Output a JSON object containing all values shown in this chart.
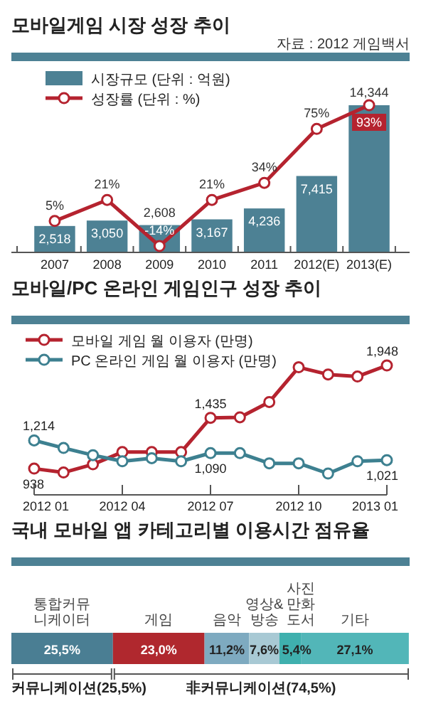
{
  "chart_data": [
    {
      "type": "bar",
      "title": "모바일게임 시장 성장 추이",
      "subtitle": "자료 : 2012 게임백서",
      "categories": [
        "2007",
        "2008",
        "2009",
        "2010",
        "2011",
        "2012(E)",
        "2013(E)"
      ],
      "legend": "top left",
      "marker": "circle",
      "tick_labels": "x",
      "series": [
        {
          "name": "시장규모 (단위 : 억원)",
          "color": "#4d8194",
          "values": [
            2518,
            3050,
            2608,
            3167,
            4236,
            7415,
            14344
          ],
          "value_labels": [
            "2,518",
            "3,050",
            "2,608",
            "3,167",
            "4,236",
            "7,415",
            "14,344"
          ]
        },
        {
          "name": "성장률 (단위 : %)",
          "type": "line",
          "axis": "y2",
          "color": "#b5232f",
          "values": [
            5,
            21,
            -14,
            21,
            34,
            75,
            93
          ],
          "value_labels": [
            "5%",
            "21%",
            "-14%",
            "21%",
            "34%",
            "75%",
            "93%"
          ]
        }
      ]
    },
    {
      "type": "line",
      "title": "모바일/PC 온라인 게임인구 성장 추이",
      "categories": [
        "2012 01",
        null,
        null,
        "2012 04",
        null,
        null,
        "2012 07",
        null,
        null,
        "2012 10",
        null,
        null,
        "2013 01"
      ],
      "legend": "top left",
      "marker": "circle",
      "tick_labels": "x",
      "series": [
        {
          "name": "모바일 게임 월 이용자 (만명)",
          "color": "#b5232f",
          "values": [
            938,
            900,
            980,
            1100,
            1100,
            1100,
            1435,
            1440,
            1590,
            1930,
            1860,
            1840,
            1948
          ],
          "value_labels": [
            "938",
            null,
            null,
            null,
            null,
            null,
            "1,435",
            null,
            null,
            null,
            null,
            null,
            "1,948"
          ]
        },
        {
          "name": "PC 온라인 게임 월 이용자 (만명)",
          "color": "#3d8090",
          "values": [
            1214,
            1140,
            1070,
            1010,
            1040,
            1010,
            1090,
            1090,
            990,
            990,
            890,
            1010,
            1021
          ],
          "value_labels": [
            "1,214",
            null,
            null,
            null,
            null,
            null,
            "1,090",
            null,
            null,
            null,
            null,
            null,
            "1,021"
          ]
        }
      ]
    },
    {
      "type": "bar",
      "orientation": "horizontal",
      "stacked": true,
      "title": "국내 모바일 앱 카테고리별 이용시간 점유율",
      "categories": [
        null
      ],
      "xlim": [
        0,
        100
      ],
      "tick_labels": false,
      "series": [
        {
          "name": "통합커뮤니케이터",
          "color": "#4a7e93",
          "values": [
            25.5
          ],
          "value_labels": [
            "25,5%"
          ]
        },
        {
          "name": "게임",
          "color": "#b0282e",
          "values": [
            23.0
          ],
          "value_labels": [
            "23,0%"
          ]
        },
        {
          "name": "음악",
          "color": "#7eaac0",
          "values": [
            11.2
          ],
          "value_labels": [
            "11,2%"
          ]
        },
        {
          "name": "영상& 방송",
          "color": "#a8c9d4",
          "values": [
            7.6
          ],
          "value_labels": [
            "7,6%"
          ]
        },
        {
          "name": "사진 만화 도서",
          "color": "#3fb0ae",
          "values": [
            5.4
          ],
          "value_labels": [
            "5,4%"
          ]
        },
        {
          "name": "기타",
          "color": "#52b6b8",
          "values": [
            27.1
          ],
          "value_labels": [
            "27,1%"
          ]
        }
      ],
      "annotations": [
        "커뮤니케이션(25,5%)",
        "非커뮤니케이션(74,5%)"
      ]
    }
  ]
}
